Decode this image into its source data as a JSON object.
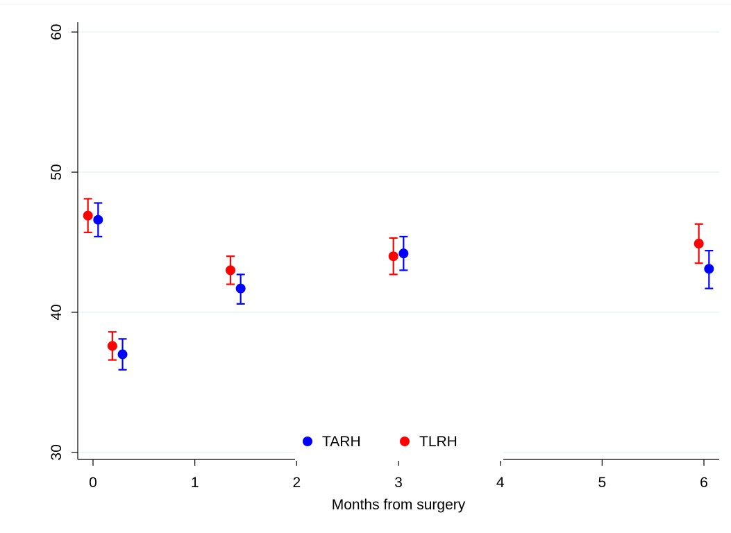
{
  "chart_data": {
    "type": "scatter",
    "title": "",
    "xlabel": "Months from surgery",
    "ylabel": "",
    "xlim": [
      -0.15,
      6.15
    ],
    "ylim": [
      29.5,
      60.7
    ],
    "x_ticks": [
      0,
      1,
      2,
      3,
      4,
      5,
      6
    ],
    "x_tick_labels": [
      "0",
      "1",
      "2",
      "3",
      "4",
      "5",
      "6"
    ],
    "y_ticks": [
      30,
      40,
      50,
      60
    ],
    "y_tick_labels": [
      "30",
      "40",
      "50",
      "60"
    ],
    "grid": "horizontal",
    "legend_position": "bottom",
    "error_bars": true,
    "series": [
      {
        "name": "TARH",
        "color": "#0000ff",
        "points": [
          {
            "x": 0.05,
            "y": 46.6,
            "lo": 45.4,
            "hi": 47.8
          },
          {
            "x": 0.29,
            "y": 37.0,
            "lo": 35.9,
            "hi": 38.1
          },
          {
            "x": 1.45,
            "y": 41.7,
            "lo": 40.6,
            "hi": 42.7
          },
          {
            "x": 3.05,
            "y": 44.2,
            "lo": 43.0,
            "hi": 45.4
          },
          {
            "x": 6.05,
            "y": 43.1,
            "lo": 41.7,
            "hi": 44.4
          }
        ]
      },
      {
        "name": "TLRH",
        "color": "#ff0000",
        "points": [
          {
            "x": -0.05,
            "y": 46.9,
            "lo": 45.7,
            "hi": 48.1
          },
          {
            "x": 0.19,
            "y": 37.6,
            "lo": 36.6,
            "hi": 38.6
          },
          {
            "x": 1.35,
            "y": 43.0,
            "lo": 42.0,
            "hi": 44.0
          },
          {
            "x": 2.95,
            "y": 44.0,
            "lo": 42.7,
            "hi": 45.3
          },
          {
            "x": 5.95,
            "y": 44.9,
            "lo": 43.5,
            "hi": 46.3
          }
        ]
      }
    ]
  }
}
